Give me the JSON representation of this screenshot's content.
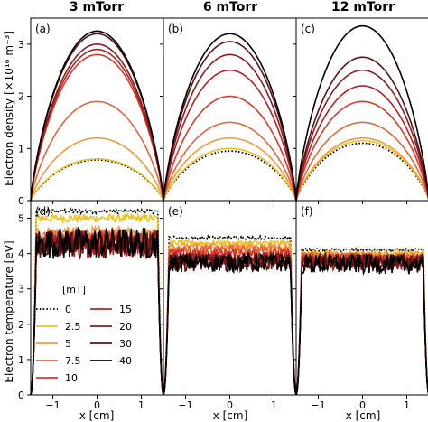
{
  "chart_data": {
    "type": "line",
    "column_titles": [
      "3 mTorr",
      "6 mTorr",
      "12 mTorr"
    ],
    "panel_labels": [
      "(a)",
      "(b)",
      "(c)",
      "(d)",
      "(e)",
      "(f)"
    ],
    "xlabel": "x [cm]",
    "xlim": [
      -1.5,
      1.5
    ],
    "x_ticks": [
      -1,
      0,
      1
    ],
    "x_tick_labels": [
      "−1",
      "0",
      "1"
    ],
    "top_row": {
      "ylabel": "Electron density [×10¹⁶ m⁻³]",
      "ylim": [
        0,
        3.5
      ],
      "y_ticks": [
        0,
        1,
        2,
        3
      ],
      "y_tick_labels": [
        "0",
        "1",
        "2",
        "3"
      ]
    },
    "bottom_row": {
      "ylabel": "Electron temperature [eV]",
      "ylim": [
        0,
        5.5
      ],
      "y_ticks": [
        0,
        1,
        2,
        3,
        4,
        5
      ],
      "y_tick_labels": [
        "0",
        "1",
        "2",
        "3",
        "4",
        "5"
      ]
    },
    "legend": {
      "title": "[mT]",
      "placement": "lower-left of panel (d)",
      "entries": [
        "0",
        "2.5",
        "5",
        "7.5",
        "10",
        "15",
        "20",
        "30",
        "40"
      ]
    },
    "series_colors": [
      "#000000",
      "#f2c21b",
      "#f29a3a",
      "#e6643a",
      "#d63a2a",
      "#b81f24",
      "#8c1c20",
      "#5a1412",
      "#000000"
    ],
    "series_dash": [
      true,
      false,
      false,
      false,
      false,
      false,
      false,
      false,
      false
    ],
    "density_peak": {
      "3 mTorr": [
        0.78,
        0.8,
        1.2,
        1.9,
        2.8,
        2.9,
        3.0,
        3.2,
        3.25
      ],
      "6 mTorr": [
        0.95,
        1.0,
        1.2,
        1.5,
        2.0,
        2.5,
        2.8,
        3.05,
        3.2
      ],
      "12 mTorr": [
        1.1,
        1.15,
        1.2,
        1.5,
        1.9,
        2.2,
        2.5,
        2.75,
        3.35
      ]
    },
    "temperature_plateau": {
      "3 mTorr": [
        5.2,
        5.0,
        4.6,
        4.45,
        4.35,
        4.2,
        4.3,
        4.25,
        4.3
      ],
      "6 mTorr": [
        4.45,
        4.3,
        4.2,
        4.1,
        4.0,
        3.85,
        3.8,
        3.75,
        3.75
      ],
      "12 mTorr": [
        4.1,
        4.0,
        3.95,
        3.9,
        3.85,
        3.8,
        3.75,
        3.75,
        3.7
      ]
    }
  }
}
